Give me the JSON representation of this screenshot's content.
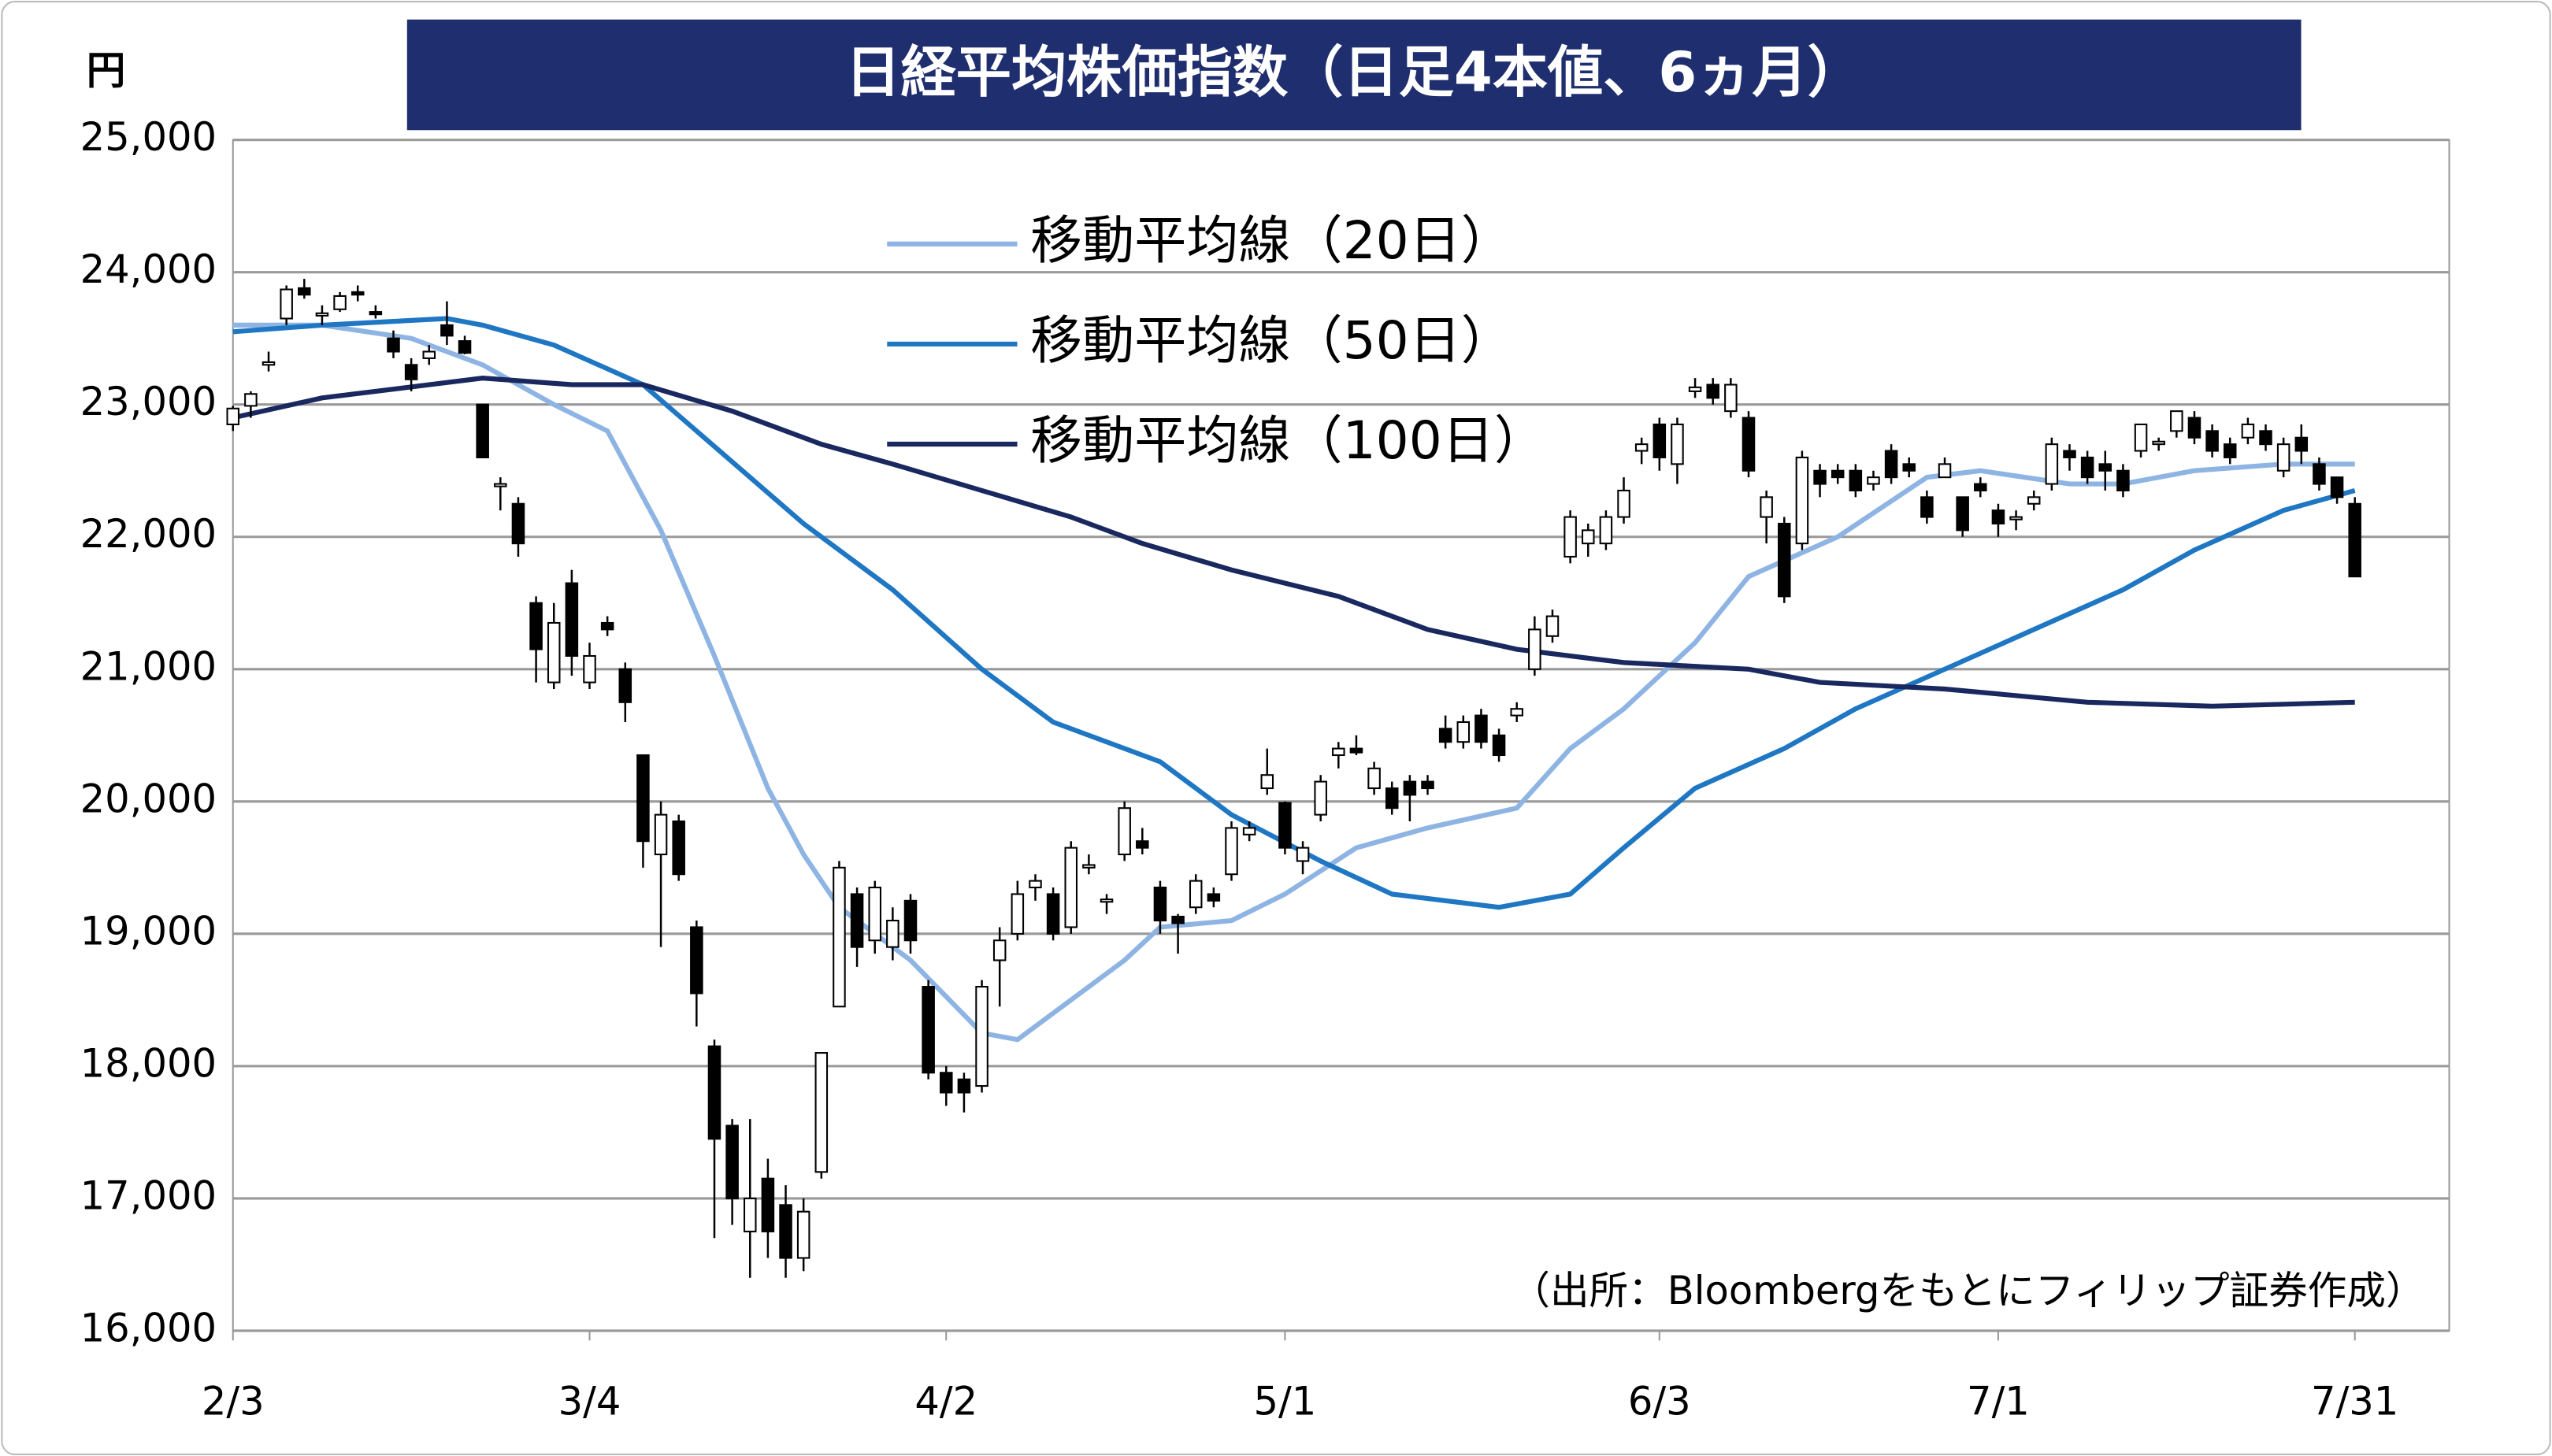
{
  "chart_data": {
    "type": "candlestick",
    "title": "日経平均株価指数（日足4本値、6ヵ月）",
    "y_unit": "円",
    "note": "（出所：Bloombergをもとにフィリップ証券作成）",
    "xlim": [
      0,
      119
    ],
    "xticks": [
      {
        "value": 0,
        "label": "2/3"
      },
      {
        "value": 20,
        "label": "3/4"
      },
      {
        "value": 40,
        "label": "4/2"
      },
      {
        "value": 59,
        "label": "5/1"
      },
      {
        "value": 80,
        "label": "6/3"
      },
      {
        "value": 99,
        "label": "7/1"
      },
      {
        "value": 119,
        "label": "7/31"
      }
    ],
    "ylim": [
      16000,
      25000
    ],
    "yticks": [
      {
        "value": 16000,
        "label": "16,000"
      },
      {
        "value": 17000,
        "label": "17,000"
      },
      {
        "value": 18000,
        "label": "18,000"
      },
      {
        "value": 19000,
        "label": "19,000"
      },
      {
        "value": 20000,
        "label": "20,000"
      },
      {
        "value": 21000,
        "label": "21,000"
      },
      {
        "value": 22000,
        "label": "22,000"
      },
      {
        "value": 23000,
        "label": "23,000"
      },
      {
        "value": 24000,
        "label": "24,000"
      },
      {
        "value": 25000,
        "label": "25,000"
      }
    ],
    "grid": true,
    "candles": {
      "open": [
        22850,
        22990,
        23300,
        23650,
        23880,
        23690,
        23720,
        23850,
        23700,
        23500,
        23300,
        23350,
        23600,
        23480,
        23000,
        22400,
        22250,
        21500,
        20900,
        21650,
        20900,
        21350,
        21000,
        20350,
        19600,
        19850,
        19050,
        18150,
        17550,
        16750,
        17150,
        16950,
        16550,
        17200,
        18450,
        19300,
        18950,
        18900,
        19250,
        18600,
        17950,
        17900,
        17850,
        18800,
        19000,
        19350,
        19300,
        19050,
        19500,
        19250,
        19600,
        19700,
        19350,
        19130,
        19200,
        19300,
        19450,
        19750,
        20100,
        19990,
        19550,
        19900,
        20350,
        20400,
        20100,
        20100,
        20150,
        20150,
        20550,
        20450,
        20650,
        20500,
        20650,
        21000,
        21250,
        21850,
        21950,
        21950,
        22150,
        22650,
        22850,
        22550,
        23100,
        23150,
        22950,
        22900,
        22150,
        22100,
        21950,
        22500,
        22500,
        22500,
        22400,
        22650,
        22550,
        22300,
        22450,
        22300,
        22400,
        22200,
        22150,
        22250,
        22400,
        22650,
        22600,
        22550,
        22500,
        22650,
        22700,
        22800,
        22900,
        22800,
        22700,
        22750,
        22800,
        22500,
        22750,
        22550,
        22450,
        22250
      ],
      "high": [
        22990,
        23100,
        23400,
        23900,
        23950,
        23750,
        23850,
        23900,
        23750,
        23560,
        23350,
        23450,
        23780,
        23520,
        23000,
        22450,
        22300,
        21550,
        21500,
        21750,
        21200,
        21400,
        21050,
        20350,
        20000,
        19900,
        19100,
        18200,
        17600,
        17600,
        17300,
        17100,
        17000,
        18100,
        19550,
        19350,
        19400,
        19200,
        19300,
        18650,
        18000,
        17950,
        18650,
        19050,
        19400,
        19450,
        19350,
        19700,
        19600,
        19300,
        20000,
        19800,
        19400,
        19150,
        19450,
        19350,
        19850,
        19850,
        20400,
        20000,
        19700,
        20200,
        20450,
        20500,
        20300,
        20150,
        20200,
        20200,
        20650,
        20650,
        20700,
        20550,
        20750,
        21400,
        21450,
        22200,
        22100,
        22200,
        22450,
        22750,
        22900,
        22900,
        23200,
        23200,
        23200,
        22950,
        22350,
        22150,
        22650,
        22550,
        22550,
        22550,
        22500,
        22700,
        22600,
        22350,
        22600,
        22300,
        22450,
        22250,
        22200,
        22350,
        22750,
        22700,
        22650,
        22650,
        22550,
        22850,
        22750,
        22950,
        22950,
        22850,
        22750,
        22900,
        22850,
        22750,
        22850,
        22600,
        22450,
        22300
      ],
      "low": [
        22800,
        22900,
        23250,
        23600,
        23800,
        23600,
        23700,
        23780,
        23650,
        23350,
        23100,
        23300,
        23450,
        23380,
        22600,
        22200,
        21850,
        20900,
        20850,
        20950,
        20850,
        21250,
        20600,
        19500,
        18900,
        19400,
        18300,
        16700,
        16800,
        16400,
        16550,
        16400,
        16450,
        17150,
        18450,
        18750,
        18850,
        18800,
        18850,
        17900,
        17700,
        17650,
        17800,
        18450,
        18950,
        19250,
        18950,
        19000,
        19450,
        19150,
        19550,
        19600,
        19000,
        18850,
        19150,
        19200,
        19400,
        19700,
        20050,
        19600,
        19450,
        19850,
        20250,
        20350,
        20050,
        19900,
        19850,
        20050,
        20400,
        20400,
        20400,
        20300,
        20600,
        20950,
        21200,
        21800,
        21850,
        21900,
        22100,
        22550,
        22500,
        22400,
        23050,
        23000,
        22900,
        22450,
        21950,
        21500,
        21900,
        22300,
        22400,
        22300,
        22350,
        22400,
        22450,
        22100,
        22450,
        22000,
        22300,
        22000,
        22050,
        22200,
        22350,
        22500,
        22400,
        22350,
        22300,
        22600,
        22650,
        22750,
        22700,
        22600,
        22550,
        22700,
        22650,
        22450,
        22550,
        22350,
        22250,
        21700
      ],
      "close": [
        22970,
        23080,
        23320,
        23870,
        23830,
        23690,
        23820,
        23830,
        23690,
        23400,
        23190,
        23400,
        23520,
        23390,
        22600,
        22400,
        21950,
        21150,
        21350,
        21100,
        21100,
        21300,
        20750,
        19700,
        19900,
        19450,
        18550,
        17450,
        17000,
        17000,
        16750,
        16550,
        16900,
        18100,
        19500,
        18900,
        19350,
        19100,
        18950,
        17950,
        17800,
        17800,
        18600,
        18950,
        19300,
        19400,
        19000,
        19650,
        19520,
        19260,
        19950,
        19650,
        19100,
        19080,
        19400,
        19250,
        19800,
        19800,
        20200,
        19650,
        19650,
        20150,
        20400,
        20370,
        20250,
        19950,
        20050,
        20100,
        20450,
        20600,
        20450,
        20350,
        20700,
        21300,
        21400,
        22150,
        22050,
        22150,
        22350,
        22700,
        22600,
        22850,
        23130,
        23050,
        23150,
        22500,
        22300,
        21550,
        22600,
        22400,
        22450,
        22350,
        22450,
        22450,
        22500,
        22150,
        22550,
        22050,
        22350,
        22100,
        22150,
        22300,
        22700,
        22600,
        22450,
        22500,
        22350,
        22850,
        22720,
        22950,
        22750,
        22650,
        22600,
        22850,
        22700,
        22700,
        22650,
        22400,
        22300,
        21700
      ]
    },
    "series": [
      {
        "name": "移動平均線（20日）",
        "color": "#8eb4e3",
        "x": [
          0,
          5,
          10,
          14,
          18,
          21,
          24,
          27,
          30,
          32,
          34,
          38,
          42,
          44,
          47,
          50,
          52,
          56,
          59,
          63,
          67,
          72,
          75,
          78,
          82,
          85,
          90,
          95,
          98,
          103,
          106,
          110,
          115,
          119
        ],
        "values": [
          23600,
          23600,
          23500,
          23300,
          23000,
          22800,
          22050,
          21100,
          20100,
          19600,
          19200,
          18800,
          18250,
          18200,
          18500,
          18800,
          19050,
          19100,
          19300,
          19650,
          19800,
          19950,
          20400,
          20700,
          21200,
          21700,
          22000,
          22450,
          22500,
          22400,
          22400,
          22500,
          22550,
          22550
        ]
      },
      {
        "name": "移動平均線（50日）",
        "color": "#1f77c4",
        "x": [
          0,
          5,
          12,
          14,
          18,
          23,
          26,
          32,
          37,
          42,
          46,
          52,
          56,
          61,
          65,
          71,
          75,
          78,
          82,
          87,
          91,
          96,
          101,
          106,
          110,
          115,
          119
        ],
        "values": [
          23550,
          23600,
          23650,
          23600,
          23450,
          23150,
          22800,
          22100,
          21600,
          21000,
          20600,
          20300,
          19900,
          19550,
          19300,
          19200,
          19300,
          19650,
          20100,
          20400,
          20700,
          21000,
          21300,
          21600,
          21900,
          22200,
          22350
        ]
      },
      {
        "name": "移動平均線（100日）",
        "color": "#1a2860",
        "x": [
          0,
          5,
          11,
          14,
          19,
          23,
          28,
          33,
          37,
          42,
          47,
          51,
          56,
          62,
          67,
          72,
          78,
          85,
          89,
          96,
          104,
          111,
          119
        ],
        "values": [
          22900,
          23050,
          23150,
          23200,
          23150,
          23150,
          22950,
          22700,
          22550,
          22350,
          22150,
          21950,
          21750,
          21550,
          21300,
          21150,
          21050,
          21000,
          20900,
          20850,
          20750,
          20720,
          20750
        ]
      }
    ]
  }
}
